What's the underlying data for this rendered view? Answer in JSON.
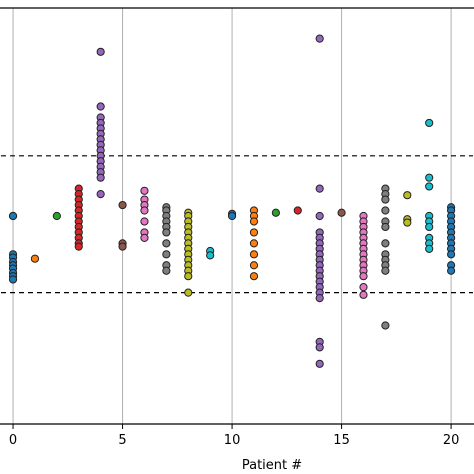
{
  "chart_data": {
    "type": "scatter",
    "xlabel": "Patient #",
    "ylabel": "",
    "title": "",
    "xlim": [
      -0.55,
      21.0
    ],
    "ylim": [
      -1.9,
      1.9
    ],
    "x_ticks": [
      0,
      5,
      10,
      15,
      20
    ],
    "x_tick_labels": [
      "0",
      "5",
      "10",
      "15",
      "20"
    ],
    "grid": "vertical",
    "reference_lines": [
      0.55,
      -0.7
    ],
    "colors": {
      "blue": "#1f77b4",
      "orange": "#ff7f0e",
      "green": "#2ca02c",
      "red": "#d62728",
      "purple": "#9467bd",
      "brown": "#8c564b",
      "pink": "#e377c2",
      "gray": "#7f7f7f",
      "olive": "#bcbd22",
      "cyan": "#17becf"
    },
    "series": [
      {
        "patient": 0,
        "color": "#1f77b4",
        "y": [
          0.0,
          0.0,
          -0.35,
          -0.38,
          -0.42,
          -0.45,
          -0.48,
          -0.52,
          -0.55,
          -0.58
        ]
      },
      {
        "patient": 1,
        "color": "#ff7f0e",
        "y": [
          -0.39
        ]
      },
      {
        "patient": 2,
        "color": "#2ca02c",
        "y": [
          0.0
        ]
      },
      {
        "patient": 3,
        "color": "#d62728",
        "y": [
          0.25,
          0.2,
          0.15,
          0.1,
          0.05,
          0.0,
          -0.05,
          -0.1,
          -0.15,
          -0.2,
          -0.25,
          -0.28
        ]
      },
      {
        "patient": 4,
        "color": "#9467bd",
        "y": [
          1.5,
          1.0,
          0.9,
          0.85,
          0.8,
          0.75,
          0.7,
          0.65,
          0.6,
          0.55,
          0.5,
          0.45,
          0.4,
          0.35,
          0.2
        ]
      },
      {
        "patient": 5,
        "color": "#8c564b",
        "y": [
          0.1,
          -0.25,
          -0.28
        ]
      },
      {
        "patient": 6,
        "color": "#e377c2",
        "y": [
          0.23,
          0.15,
          0.1,
          0.05,
          -0.05,
          -0.15,
          -0.2
        ]
      },
      {
        "patient": 7,
        "color": "#7f7f7f",
        "y": [
          0.08,
          0.05,
          0.0,
          -0.05,
          -0.1,
          -0.15,
          -0.25,
          -0.35,
          -0.45,
          -0.5
        ]
      },
      {
        "patient": 8,
        "color": "#bcbd22",
        "y": [
          0.03,
          0.0,
          -0.05,
          -0.1,
          -0.15,
          -0.2,
          -0.25,
          -0.3,
          -0.35,
          -0.4,
          -0.45,
          -0.5,
          -0.55,
          -0.7
        ]
      },
      {
        "patient": 9,
        "color": "#17becf",
        "y": [
          -0.32,
          -0.36
        ]
      },
      {
        "patient": 10,
        "color": "#1f77b4",
        "y": [
          0.02,
          0.0
        ]
      },
      {
        "patient": 11,
        "color": "#ff7f0e",
        "y": [
          0.05,
          0.0,
          -0.05,
          -0.15,
          -0.25,
          -0.35,
          -0.45,
          -0.55
        ]
      },
      {
        "patient": 12,
        "color": "#2ca02c",
        "y": [
          0.03
        ]
      },
      {
        "patient": 13,
        "color": "#d62728",
        "y": [
          0.05
        ]
      },
      {
        "patient": 14,
        "color": "#9467bd",
        "y": [
          1.62,
          0.25,
          0.0,
          -0.15,
          -0.2,
          -0.25,
          -0.3,
          -0.35,
          -0.4,
          -0.45,
          -0.5,
          -0.55,
          -0.6,
          -0.65,
          -0.7,
          -0.75,
          -1.15,
          -1.2,
          -1.35
        ]
      },
      {
        "patient": 15,
        "color": "#8c564b",
        "y": [
          0.03
        ]
      },
      {
        "patient": 16,
        "color": "#e377c2",
        "y": [
          0.0,
          -0.05,
          -0.1,
          -0.15,
          -0.2,
          -0.25,
          -0.3,
          -0.35,
          -0.4,
          -0.45,
          -0.5,
          -0.55,
          -0.65,
          -0.72
        ]
      },
      {
        "patient": 17,
        "color": "#7f7f7f",
        "y": [
          0.25,
          0.2,
          0.15,
          0.05,
          -0.05,
          -0.1,
          -0.25,
          -0.35,
          -0.4,
          -0.45,
          -0.5,
          -1.0
        ]
      },
      {
        "patient": 18,
        "color": "#bcbd22",
        "y": [
          0.19,
          -0.03,
          -0.06
        ]
      },
      {
        "patient": 19,
        "color": "#17becf",
        "y": [
          0.85,
          0.35,
          0.27,
          0.0,
          -0.05,
          -0.1,
          -0.2,
          -0.25,
          -0.3
        ]
      },
      {
        "patient": 20,
        "color": "#1f77b4",
        "y": [
          0.08,
          0.05,
          0.0,
          -0.05,
          -0.1,
          -0.15,
          -0.2,
          -0.25,
          -0.3,
          -0.35,
          -0.45,
          -0.5
        ]
      }
    ]
  }
}
